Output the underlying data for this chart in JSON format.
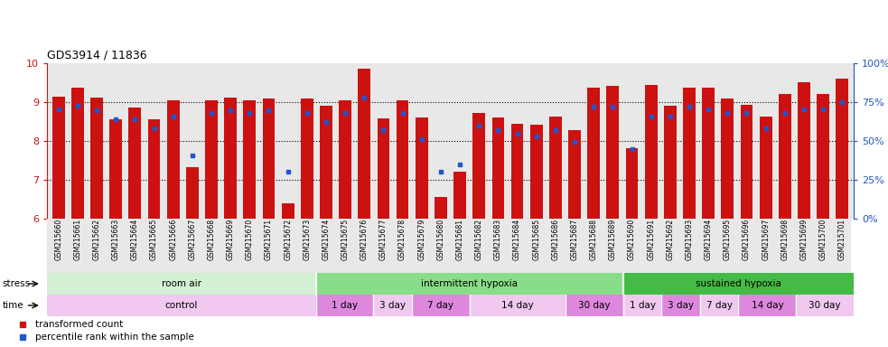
{
  "title": "GDS3914 / 11836",
  "samples": [
    "GSM215660",
    "GSM215661",
    "GSM215662",
    "GSM215663",
    "GSM215664",
    "GSM215665",
    "GSM215666",
    "GSM215667",
    "GSM215668",
    "GSM215669",
    "GSM215670",
    "GSM215671",
    "GSM215672",
    "GSM215673",
    "GSM215674",
    "GSM215675",
    "GSM215676",
    "GSM215677",
    "GSM215678",
    "GSM215679",
    "GSM215680",
    "GSM215681",
    "GSM215682",
    "GSM215683",
    "GSM215684",
    "GSM215685",
    "GSM215686",
    "GSM215687",
    "GSM215688",
    "GSM215689",
    "GSM215690",
    "GSM215691",
    "GSM215692",
    "GSM215693",
    "GSM215694",
    "GSM215695",
    "GSM215696",
    "GSM215697",
    "GSM215698",
    "GSM215699",
    "GSM215700",
    "GSM215701"
  ],
  "bar_heights": [
    9.15,
    9.38,
    9.12,
    8.55,
    8.85,
    8.55,
    9.05,
    7.32,
    9.05,
    9.12,
    9.05,
    9.1,
    6.4,
    9.1,
    8.9,
    9.05,
    9.85,
    8.58,
    9.05,
    8.6,
    6.55,
    7.22,
    8.72,
    8.6,
    8.45,
    8.42,
    8.62,
    8.28,
    9.38,
    9.42,
    7.82,
    9.45,
    8.9,
    9.38,
    9.38,
    9.1,
    8.92,
    8.62,
    9.22,
    9.52,
    9.2,
    9.6
  ],
  "blue_y": [
    8.82,
    8.9,
    8.78,
    8.55,
    8.55,
    8.32,
    8.62,
    7.62,
    8.72,
    8.78,
    8.72,
    8.78,
    7.22,
    8.72,
    8.5,
    8.72,
    9.12,
    8.28,
    8.72,
    8.05,
    7.22,
    7.4,
    8.4,
    8.28,
    8.18,
    8.12,
    8.28,
    7.98,
    8.88,
    8.88,
    7.78,
    8.62,
    8.62,
    8.88,
    8.82,
    8.72,
    8.72,
    8.32,
    8.72,
    8.82,
    8.82,
    9.0
  ],
  "bar_color": "#cc1111",
  "blue_color": "#2255cc",
  "baseline": 6.0,
  "ylim": [
    6.0,
    10.0
  ],
  "yticks": [
    6,
    7,
    8,
    9,
    10
  ],
  "right_yticks": [
    0,
    25,
    50,
    75,
    100
  ],
  "right_ylabels": [
    "0%",
    "25%",
    "50%",
    "75%",
    "100%"
  ],
  "stress_groups": [
    {
      "label": "room air",
      "start": 0,
      "end": 14,
      "color": "#d4f0d4"
    },
    {
      "label": "intermittent hypoxia",
      "start": 14,
      "end": 30,
      "color": "#88dd88"
    },
    {
      "label": "sustained hypoxia",
      "start": 30,
      "end": 42,
      "color": "#44bb44"
    }
  ],
  "time_groups": [
    {
      "label": "control",
      "start": 0,
      "end": 14,
      "color": "#f0c8f0"
    },
    {
      "label": "1 day",
      "start": 14,
      "end": 17,
      "color": "#dd88dd"
    },
    {
      "label": "3 day",
      "start": 17,
      "end": 19,
      "color": "#f0c8f0"
    },
    {
      "label": "7 day",
      "start": 19,
      "end": 22,
      "color": "#dd88dd"
    },
    {
      "label": "14 day",
      "start": 22,
      "end": 27,
      "color": "#f0c8f0"
    },
    {
      "label": "30 day",
      "start": 27,
      "end": 30,
      "color": "#dd88dd"
    },
    {
      "label": "1 day",
      "start": 30,
      "end": 32,
      "color": "#f0c8f0"
    },
    {
      "label": "3 day",
      "start": 32,
      "end": 34,
      "color": "#dd88dd"
    },
    {
      "label": "7 day",
      "start": 34,
      "end": 36,
      "color": "#f0c8f0"
    },
    {
      "label": "14 day",
      "start": 36,
      "end": 39,
      "color": "#dd88dd"
    },
    {
      "label": "30 day",
      "start": 39,
      "end": 42,
      "color": "#f0c8f0"
    }
  ],
  "legend_items": [
    {
      "label": "transformed count",
      "color": "#cc1111"
    },
    {
      "label": "percentile rank within the sample",
      "color": "#2255cc"
    }
  ],
  "xlabel_color": "#cc1111",
  "right_axis_color": "#2255bb",
  "chart_bg": "#e8e8e8"
}
